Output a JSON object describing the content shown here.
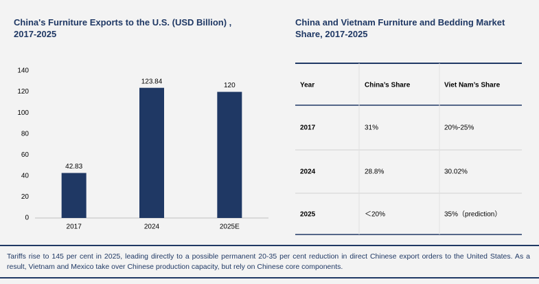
{
  "chart_data": {
    "type": "bar",
    "title": "China's Furniture Exports to the U.S. (USD Billion) , 2017-2025",
    "categories": [
      "2017",
      "2024",
      "2025E"
    ],
    "values": [
      42.83,
      123.84,
      120
    ],
    "color": "#1f3864",
    "ylim": [
      0,
      140
    ],
    "yticks": [
      0,
      20,
      40,
      60,
      80,
      100,
      120,
      140
    ]
  },
  "table": {
    "title": "China and Vietnam Furniture and Bedding Market Share, 2017-2025",
    "header": [
      "Year",
      "China’s Share",
      "Viet Nam’s Share"
    ],
    "rows": [
      [
        "2017",
        "31%",
        "20%-25%"
      ],
      [
        "2024",
        "28.8%",
        "30.02%"
      ],
      [
        "2025",
        "＜20%",
        "35%（prediction）"
      ]
    ]
  },
  "footer": "Tariffs rise to 145 per cent in 2025, leading directly to a possible permanent 20-35 per cent reduction in direct Chinese export orders to the United States. As a result, Vietnam and Mexico take over Chinese production capacity, but rely on Chinese core components."
}
